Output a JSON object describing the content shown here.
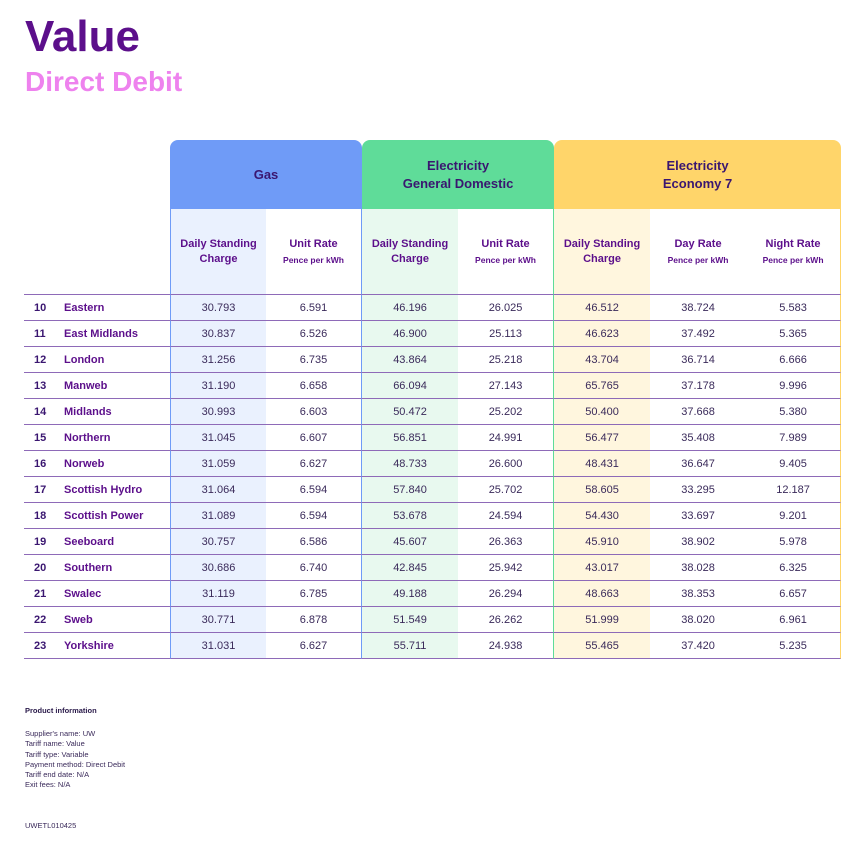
{
  "header": {
    "title": "Value",
    "subtitle": "Direct Debit"
  },
  "table": {
    "groups": {
      "gas": "Gas",
      "electricity_line1": "Electricity",
      "electricity_line2": "General Domestic",
      "economy7_line1": "Electricity",
      "economy7_line2": "Economy 7"
    },
    "columns": {
      "gas_standing_line1": "Daily Standing",
      "gas_standing_line2": "Charge",
      "gas_unit": "Unit Rate",
      "gas_unit_sub": "Pence per kWh",
      "elec_standing_line1": "Daily Standing",
      "elec_standing_line2": "Charge",
      "elec_unit": "Unit Rate",
      "elec_unit_sub": "Pence per kWh",
      "e7_standing_line1": "Daily Standing",
      "e7_standing_line2": "Charge",
      "e7_day": "Day Rate",
      "e7_day_sub": "Pence per kWh",
      "e7_night": "Night Rate",
      "e7_night_sub": "Pence per kWh"
    },
    "rows": [
      [
        "10",
        "Eastern",
        "30.793",
        "6.591",
        "46.196",
        "26.025",
        "46.512",
        "38.724",
        "5.583"
      ],
      [
        "11",
        "East Midlands",
        "30.837",
        "6.526",
        "46.900",
        "25.113",
        "46.623",
        "37.492",
        "5.365"
      ],
      [
        "12",
        "London",
        "31.256",
        "6.735",
        "43.864",
        "25.218",
        "43.704",
        "36.714",
        "6.666"
      ],
      [
        "13",
        "Manweb",
        "31.190",
        "6.658",
        "66.094",
        "27.143",
        "65.765",
        "37.178",
        "9.996"
      ],
      [
        "14",
        "Midlands",
        "30.993",
        "6.603",
        "50.472",
        "25.202",
        "50.400",
        "37.668",
        "5.380"
      ],
      [
        "15",
        "Northern",
        "31.045",
        "6.607",
        "56.851",
        "24.991",
        "56.477",
        "35.408",
        "7.989"
      ],
      [
        "16",
        "Norweb",
        "31.059",
        "6.627",
        "48.733",
        "26.600",
        "48.431",
        "36.647",
        "9.405"
      ],
      [
        "17",
        "Scottish Hydro",
        "31.064",
        "6.594",
        "57.840",
        "25.702",
        "58.605",
        "33.295",
        "12.187"
      ],
      [
        "18",
        "Scottish Power",
        "31.089",
        "6.594",
        "53.678",
        "24.594",
        "54.430",
        "33.697",
        "9.201"
      ],
      [
        "19",
        "Seeboard",
        "30.757",
        "6.586",
        "45.607",
        "26.363",
        "45.910",
        "38.902",
        "5.978"
      ],
      [
        "20",
        "Southern",
        "30.686",
        "6.740",
        "42.845",
        "25.942",
        "43.017",
        "38.028",
        "6.325"
      ],
      [
        "21",
        "Swalec",
        "31.119",
        "6.785",
        "49.188",
        "26.294",
        "48.663",
        "38.353",
        "6.657"
      ],
      [
        "22",
        "Sweb",
        "30.771",
        "6.878",
        "51.549",
        "26.262",
        "51.999",
        "38.020",
        "6.961"
      ],
      [
        "23",
        "Yorkshire",
        "31.031",
        "6.627",
        "55.711",
        "24.938",
        "55.465",
        "37.420",
        "5.235"
      ]
    ]
  },
  "product_info": {
    "title": "Product information",
    "lines": [
      "Supplier's name: UW",
      "Tariff name: Value",
      "Tariff type: Variable",
      "Payment method: Direct Debit",
      "Tariff end date: N/A",
      "Exit fees: N/A"
    ]
  },
  "footer_code": "UWETL010425",
  "colors": {
    "brand_purple": "#5c0f8b",
    "subtitle_pink": "#ee82ee",
    "gas_header": "#6f9bf7",
    "electricity_header": "#5fdc99",
    "economy7_header": "#ffd56a"
  }
}
